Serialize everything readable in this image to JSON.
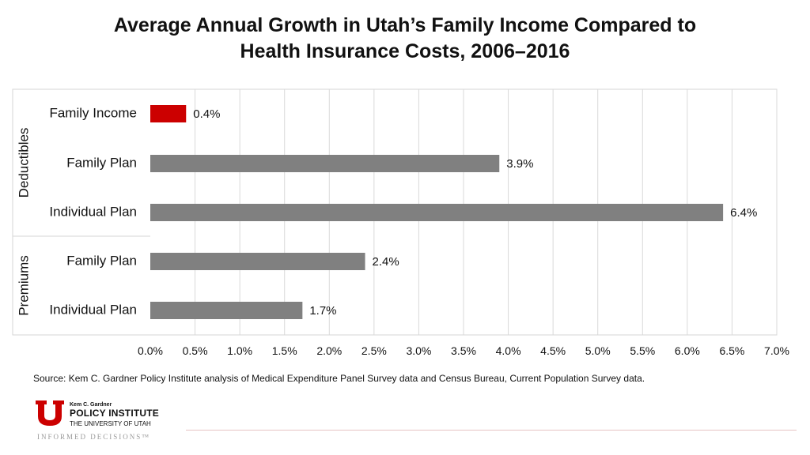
{
  "title_line1": "Average Annual Growth in Utah’s Family Income Compared to",
  "title_line2": "Health Insurance Costs, 2006–2016",
  "chart_data": {
    "type": "bar",
    "orientation": "horizontal",
    "groups": [
      {
        "name": "Deductibles",
        "categories": [
          "Family Income",
          "Family Plan",
          "Individual Plan"
        ]
      },
      {
        "name": "Premiums",
        "categories": [
          "Family Plan",
          "Individual Plan"
        ]
      }
    ],
    "categories": [
      "Family Income",
      "Family Plan",
      "Individual Plan",
      "Family Plan",
      "Individual Plan"
    ],
    "values": [
      0.4,
      3.9,
      6.4,
      2.4,
      1.7
    ],
    "data_labels": [
      "0.4%",
      "3.9%",
      "6.4%",
      "2.4%",
      "1.7%"
    ],
    "colors": [
      "#cc0000",
      "#808080",
      "#808080",
      "#808080",
      "#808080"
    ],
    "xlim": [
      0,
      7
    ],
    "x_ticks": [
      "0.0%",
      "0.5%",
      "1.0%",
      "1.5%",
      "2.0%",
      "2.5%",
      "3.0%",
      "3.5%",
      "4.0%",
      "4.5%",
      "5.0%",
      "5.5%",
      "6.0%",
      "6.5%",
      "7.0%"
    ],
    "grid": true,
    "legend": "none"
  },
  "source": "Source: Kem C. Gardner Policy Institute analysis of Medical Expenditure Panel Survey data and Census Bureau, Current Population Survey data.",
  "logo": {
    "small": "Kem C. Gardner",
    "main": "POLICY INSTITUTE",
    "sub": "THE UNIVERSITY OF UTAH",
    "tagline": "INFORMED DECISIONS™"
  }
}
